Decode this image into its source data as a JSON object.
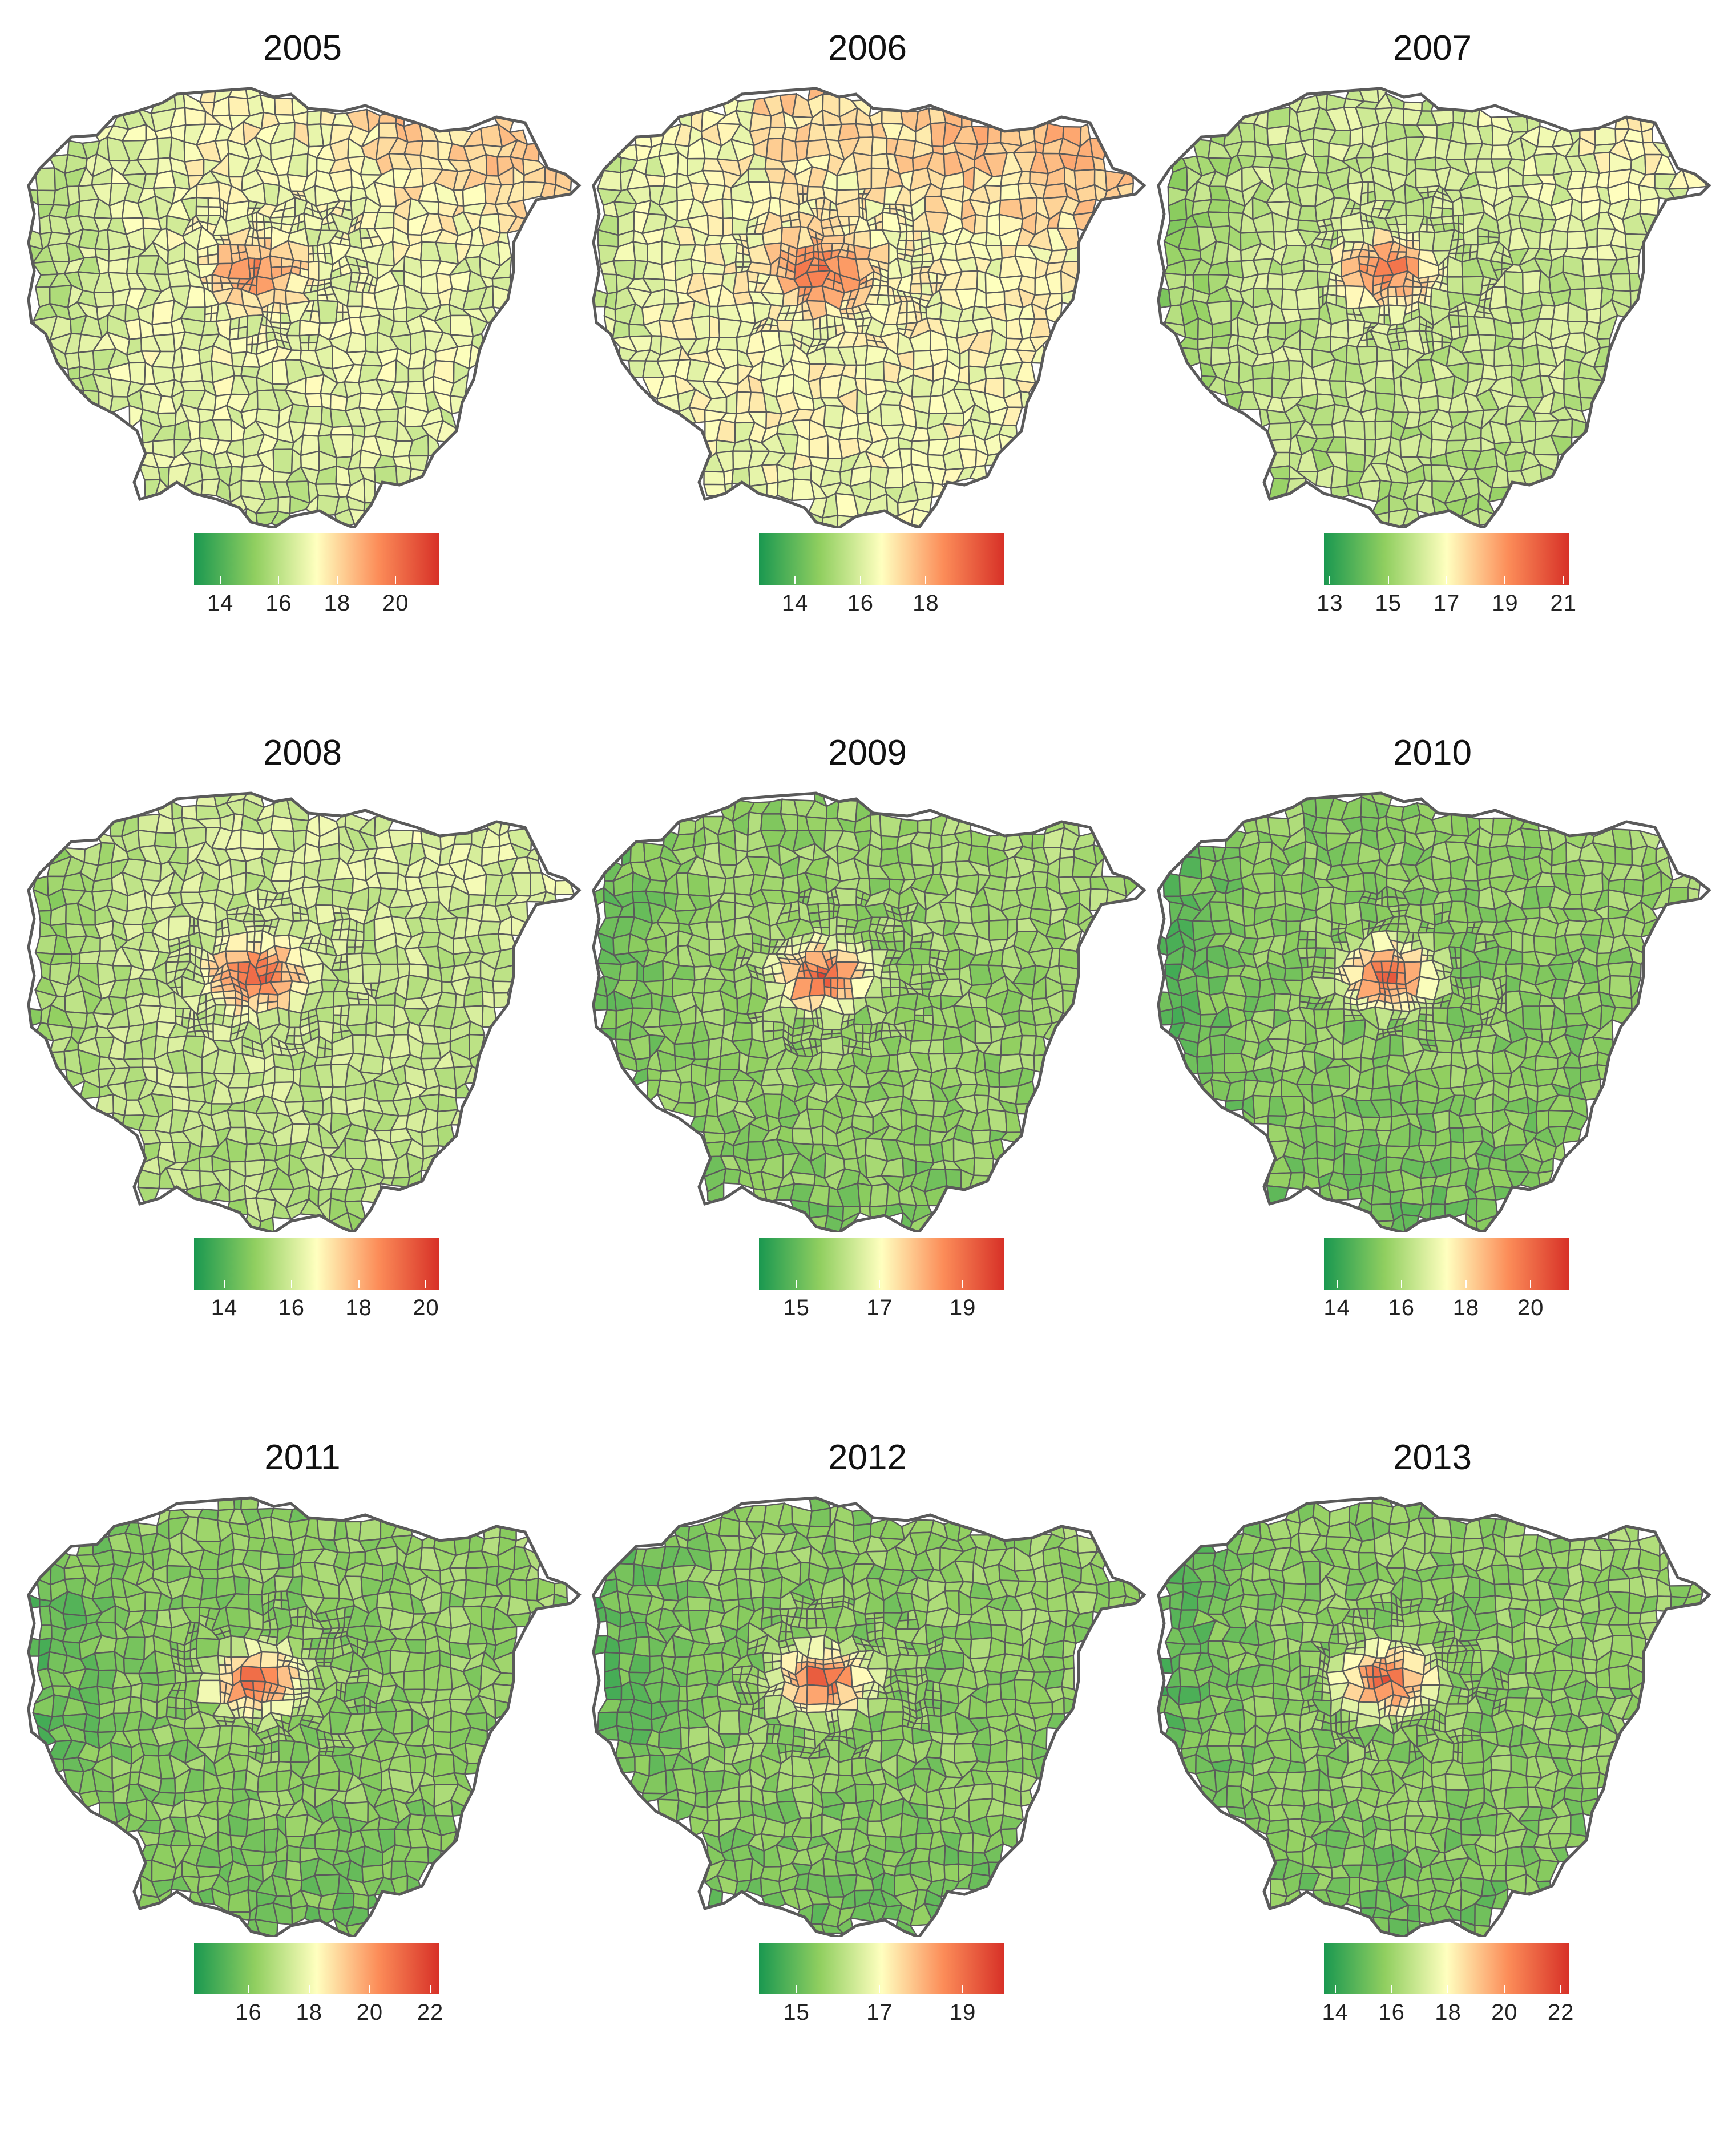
{
  "figure": {
    "panels": [
      {
        "title": "2005",
        "scale": {
          "min": 13.1,
          "max": 21.5,
          "ticks": [
            "14",
            "16",
            "18",
            "20"
          ]
        },
        "hot": 0.8,
        "outer": 0.45,
        "east": 0.7,
        "north": 0.55
      },
      {
        "title": "2006",
        "scale": {
          "min": 12.9,
          "max": 20.4,
          "ticks": [
            "14",
            "16",
            "18"
          ]
        },
        "hot": 0.85,
        "outer": 0.5,
        "east": 0.72,
        "north": 0.62
      },
      {
        "title": "2007",
        "scale": {
          "min": 12.8,
          "max": 21.2,
          "ticks": [
            "13",
            "15",
            "17",
            "19",
            "21"
          ]
        },
        "hot": 0.85,
        "outer": 0.38,
        "east": 0.55,
        "north": 0.4
      },
      {
        "title": "2008",
        "scale": {
          "min": 13.1,
          "max": 20.4,
          "ticks": [
            "14",
            "16",
            "18",
            "20"
          ]
        },
        "hot": 0.9,
        "outer": 0.38,
        "east": 0.45,
        "north": 0.42
      },
      {
        "title": "2009",
        "scale": {
          "min": 14.1,
          "max": 20.0,
          "ticks": [
            "15",
            "17",
            "19"
          ]
        },
        "hot": 0.92,
        "outer": 0.28,
        "east": 0.35,
        "north": 0.28
      },
      {
        "title": "2010",
        "scale": {
          "min": 13.6,
          "max": 21.2,
          "ticks": [
            "14",
            "16",
            "18",
            "20"
          ]
        },
        "hot": 0.9,
        "outer": 0.25,
        "east": 0.32,
        "north": 0.26
      },
      {
        "title": "2011",
        "scale": {
          "min": 14.2,
          "max": 22.3,
          "ticks": [
            "16",
            "18",
            "20",
            "22"
          ]
        },
        "hot": 0.9,
        "outer": 0.25,
        "east": 0.3,
        "north": 0.25
      },
      {
        "title": "2012",
        "scale": {
          "min": 14.1,
          "max": 20.0,
          "ticks": [
            "15",
            "17",
            "19"
          ]
        },
        "hot": 0.92,
        "outer": 0.25,
        "east": 0.3,
        "north": 0.25
      },
      {
        "title": "2013",
        "scale": {
          "min": 13.6,
          "max": 22.3,
          "ticks": [
            "14",
            "16",
            "18",
            "20",
            "22"
          ]
        },
        "hot": 0.92,
        "outer": 0.25,
        "east": 0.3,
        "north": 0.25
      }
    ],
    "colors": {
      "low": "#1a9850",
      "mid_low": "#91cf60",
      "mid": "#ffffbf",
      "mid_high": "#fc8d59",
      "high": "#d73027",
      "border": "#5a5a5a"
    }
  }
}
